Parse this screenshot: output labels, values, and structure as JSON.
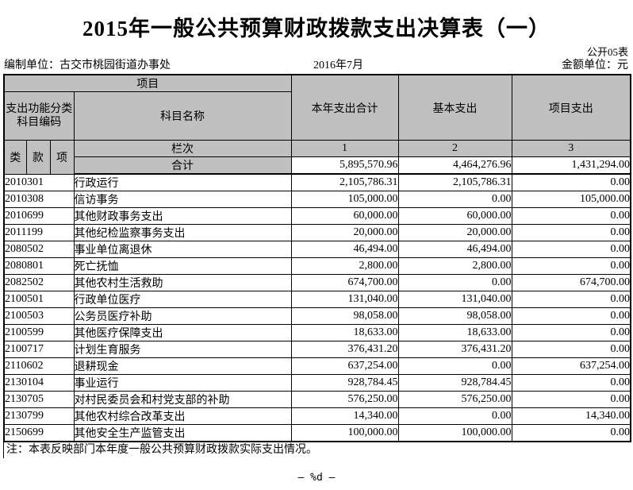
{
  "page": {
    "title": "2015年一般公共预算财政拨款支出决算表（一）",
    "form_code": "公开05表",
    "prepared_by": "编制单位：古交市桃园街道办事处",
    "period": "2016年7月",
    "unit_label": "金额单位：元",
    "note": "注：本表反映部门本年度一般公共预算财政拨款实际支出情况。",
    "footer": "— %d —"
  },
  "colors": {
    "header_bg": "#c0c0c0",
    "border": "#000000"
  },
  "table": {
    "header": {
      "project_group": "项目",
      "code_group": "支出功能分类科目编码",
      "subject_name": "科目名称",
      "col_year_total": "本年支出合计",
      "col_basic": "基本支出",
      "col_project": "项目支出",
      "col_class": "类",
      "col_section": "款",
      "col_item": "项",
      "lanci_label": "栏次",
      "total_label": "合计",
      "column_indices": [
        "1",
        "2",
        "3"
      ]
    },
    "totals": [
      "5,895,570.96",
      "4,464,276.96",
      "1,431,294.00"
    ],
    "rows": [
      {
        "code": "2010301",
        "name": "行政运行",
        "total": "2,105,786.31",
        "basic": "2,105,786.31",
        "project": "0.00"
      },
      {
        "code": "2010308",
        "name": "信访事务",
        "total": "105,000.00",
        "basic": "0.00",
        "project": "105,000.00"
      },
      {
        "code": "2010699",
        "name": "其他财政事务支出",
        "total": "60,000.00",
        "basic": "60,000.00",
        "project": "0.00"
      },
      {
        "code": "2011199",
        "name": "其他纪检监察事务支出",
        "total": "20,000.00",
        "basic": "20,000.00",
        "project": "0.00"
      },
      {
        "code": "2080502",
        "name": "事业单位离退休",
        "total": "46,494.00",
        "basic": "46,494.00",
        "project": "0.00"
      },
      {
        "code": "2080801",
        "name": "死亡抚恤",
        "total": "2,800.00",
        "basic": "2,800.00",
        "project": "0.00"
      },
      {
        "code": "2082502",
        "name": "其他农村生活救助",
        "total": "674,700.00",
        "basic": "0.00",
        "project": "674,700.00"
      },
      {
        "code": "2100501",
        "name": "行政单位医疗",
        "total": "131,040.00",
        "basic": "131,040.00",
        "project": "0.00"
      },
      {
        "code": "2100503",
        "name": "公务员医疗补助",
        "total": "98,058.00",
        "basic": "98,058.00",
        "project": "0.00"
      },
      {
        "code": "2100599",
        "name": "其他医疗保障支出",
        "total": "18,633.00",
        "basic": "18,633.00",
        "project": "0.00"
      },
      {
        "code": "2100717",
        "name": "计划生育服务",
        "total": "376,431.20",
        "basic": "376,431.20",
        "project": "0.00"
      },
      {
        "code": "2110602",
        "name": "退耕现金",
        "total": "637,254.00",
        "basic": "0.00",
        "project": "637,254.00"
      },
      {
        "code": "2130104",
        "name": "事业运行",
        "total": "928,784.45",
        "basic": "928,784.45",
        "project": "0.00"
      },
      {
        "code": "2130705",
        "name": "对村民委员会和村党支部的补助",
        "total": "576,250.00",
        "basic": "576,250.00",
        "project": "0.00"
      },
      {
        "code": "2130799",
        "name": "其他农村综合改革支出",
        "total": "14,340.00",
        "basic": "0.00",
        "project": "14,340.00"
      },
      {
        "code": "2150699",
        "name": "其他安全生产监管支出",
        "total": "100,000.00",
        "basic": "100,000.00",
        "project": "0.00"
      }
    ]
  }
}
